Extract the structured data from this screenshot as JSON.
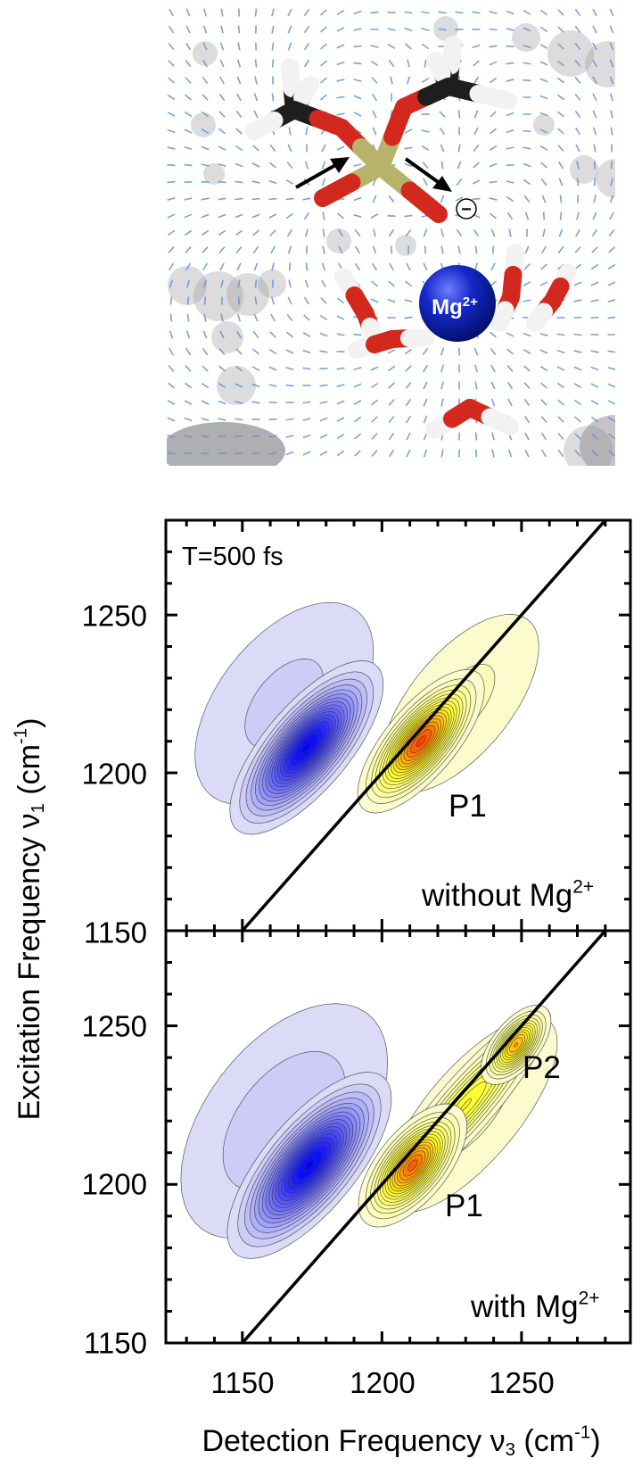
{
  "molecule": {
    "ion_label": "Mg",
    "ion_charge": "2+",
    "anion_charge": "−",
    "colors": {
      "oxygen": "#d3281d",
      "hydrogen": "#f2f2f2",
      "carbon": "#1e1e1e",
      "phosphorus": "#b8b36a",
      "magnesium": "#1428c8",
      "field": "#5f95d4",
      "ghost": "#9a9a9a"
    }
  },
  "chart_data": {
    "type": "heatmap",
    "subtype": "2D-IR contour plot",
    "xlabel": {
      "text": "Detection Frequency ν",
      "sub": "3",
      "unit_open": " (cm",
      "sup": "-1",
      "unit_close": ")"
    },
    "ylabel": {
      "text": "Excitation Frequency ν",
      "sub": "1",
      "unit_open": " (cm",
      "sup": "-1",
      "unit_close": ")"
    },
    "xlim": [
      1122.6,
      1289
    ],
    "ylim": [
      1150,
      1280
    ],
    "x_ticks": [
      "1150",
      "1200",
      "1250"
    ],
    "y_ticks": [
      "1150",
      "1200",
      "1250"
    ],
    "minor_tick_step": 10,
    "diagonal": "ν1 = ν3",
    "colors": {
      "negative": "#0000ff",
      "positive_low": "#ffff30",
      "positive_mid": "#ffa500",
      "positive_high": "#ff1a00",
      "line": "#000000"
    },
    "panels": [
      {
        "waiting_time": "T=500 fs",
        "condition": {
          "text": "without Mg",
          "sup": "2+"
        },
        "peak_labels": [
          {
            "text": "P1",
            "x": 1230,
            "y": 1191
          }
        ],
        "peaks": [
          {
            "sign": "negative",
            "x": 1165,
            "y": 1222,
            "amplitude": 0.13,
            "width_diag": 60,
            "width_anti": 34
          },
          {
            "sign": "positive",
            "x": 1228,
            "y": 1222,
            "amplitude": 0.13,
            "width_diag": 55,
            "width_anti": 26
          },
          {
            "sign": "negative",
            "x": 1173,
            "y": 1208,
            "amplitude": 1.0,
            "width_diag": 30,
            "width_anti": 12
          },
          {
            "sign": "positive",
            "x": 1214,
            "y": 1210,
            "amplitude": 0.95,
            "width_diag": 25,
            "width_anti": 10
          }
        ]
      },
      {
        "waiting_time": "",
        "condition": {
          "text": "with Mg",
          "sup": "2+"
        },
        "peak_labels": [
          {
            "text": "P1",
            "x": 1229,
            "y": 1194
          },
          {
            "text": "P2",
            "x": 1258,
            "y": 1238
          }
        ],
        "peaks": [
          {
            "sign": "negative",
            "x": 1165,
            "y": 1220,
            "amplitude": 0.16,
            "width_diag": 62,
            "width_anti": 36
          },
          {
            "sign": "positive",
            "x": 1232,
            "y": 1222,
            "amplitude": 0.13,
            "width_diag": 62,
            "width_anti": 24
          },
          {
            "sign": "negative",
            "x": 1174,
            "y": 1206,
            "amplitude": 1.0,
            "width_diag": 32,
            "width_anti": 13
          },
          {
            "sign": "positive",
            "x": 1230,
            "y": 1225,
            "amplitude": 0.5,
            "width_diag": 40,
            "width_anti": 9
          },
          {
            "sign": "positive",
            "x": 1211,
            "y": 1206,
            "amplitude": 0.9,
            "width_diag": 21,
            "width_anti": 10
          },
          {
            "sign": "positive",
            "x": 1248,
            "y": 1244,
            "amplitude": 0.72,
            "width_diag": 14,
            "width_anti": 7
          }
        ]
      }
    ]
  }
}
